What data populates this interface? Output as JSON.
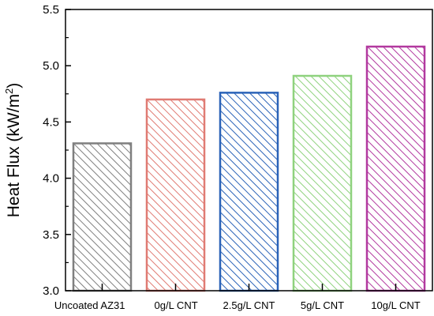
{
  "chart_data": {
    "type": "bar",
    "categories": [
      "Uncoated AZ31",
      "0g/L CNT",
      "2.5g/L CNT",
      "5g/L CNT",
      "10g/L CNT"
    ],
    "values": [
      4.31,
      4.7,
      4.76,
      4.91,
      5.17
    ],
    "ylabel": {
      "text": "Heat Flux (kW/m",
      "superscript": "2",
      "suffix": ")"
    },
    "xlabel": "",
    "title": "",
    "ylim": [
      3.0,
      5.5
    ],
    "yticks": [
      "3.0",
      "3.5",
      "4.0",
      "4.5",
      "5.0",
      "5.5"
    ],
    "grid": false,
    "fill_pattern": "diagonal-hatch",
    "colors": [
      "#7f7f7f",
      "#e07b73",
      "#2b63b8",
      "#8fd27e",
      "#b2399f"
    ]
  }
}
